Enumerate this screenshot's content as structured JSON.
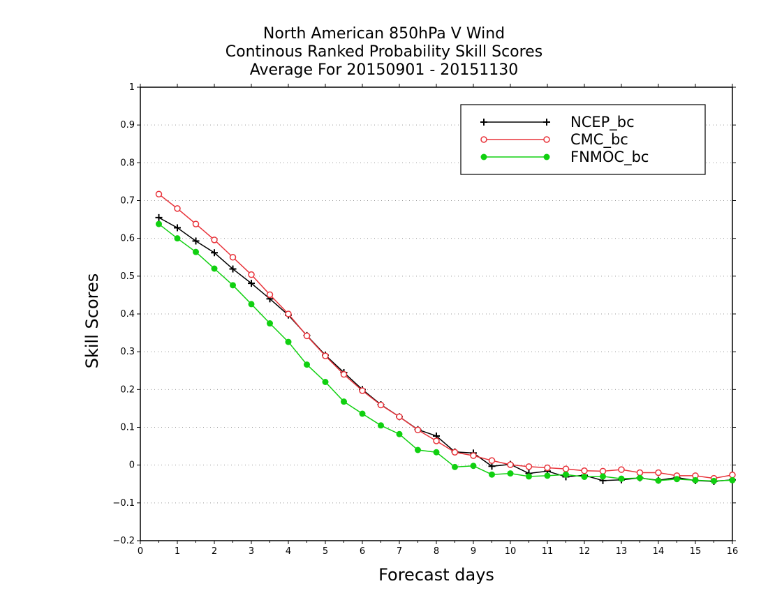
{
  "chart_data": {
    "type": "line",
    "title": [
      "North American 850hPa V Wind",
      "Continous Ranked Probability Skill Scores",
      "Average For 20150901 - 20151130"
    ],
    "xlabel": "Forecast days",
    "ylabel": "Skill Scores",
    "xlim": [
      0,
      16
    ],
    "ylim": [
      -0.2,
      1
    ],
    "x_ticks": [
      "0",
      "1",
      "2",
      "3",
      "4",
      "5",
      "6",
      "7",
      "8",
      "9",
      "10",
      "11",
      "12",
      "13",
      "14",
      "15",
      "16"
    ],
    "y_ticks": [
      "−0.2",
      "−0.1",
      "0",
      "0.1",
      "0.2",
      "0.3",
      "0.4",
      "0.5",
      "0.6",
      "0.7",
      "0.8",
      "0.9",
      "1"
    ],
    "y_tick_values": [
      -0.2,
      -0.1,
      0,
      0.1,
      0.2,
      0.3,
      0.4,
      0.5,
      0.6,
      0.7,
      0.8,
      0.9,
      1
    ],
    "grid": "horizontal dotted",
    "legend_position": "top-right",
    "x": [
      0.5,
      1,
      1.5,
      2,
      2.5,
      3,
      3.5,
      4,
      4.5,
      5,
      5.5,
      6,
      6.5,
      7,
      7.5,
      8,
      8.5,
      9,
      9.5,
      10,
      10.5,
      11,
      11.5,
      12,
      12.5,
      13,
      13.5,
      14,
      14.5,
      15,
      15.5,
      16
    ],
    "series": [
      {
        "name": "NCEP_bc",
        "color": "#000000",
        "marker": "plus",
        "values": [
          0.655,
          0.628,
          0.593,
          0.562,
          0.519,
          0.481,
          0.44,
          0.397,
          0.343,
          0.291,
          0.245,
          0.2,
          0.16,
          0.128,
          0.094,
          0.077,
          0.035,
          0.032,
          -0.003,
          0.002,
          -0.022,
          -0.016,
          -0.031,
          -0.027,
          -0.041,
          -0.039,
          -0.034,
          -0.04,
          -0.033,
          -0.041,
          -0.043,
          -0.039
        ]
      },
      {
        "name": "CMC_bc",
        "color": "#e8333a",
        "marker": "open-circle",
        "values": [
          0.717,
          0.679,
          0.638,
          0.596,
          0.55,
          0.504,
          0.451,
          0.4,
          0.342,
          0.289,
          0.24,
          0.197,
          0.159,
          0.128,
          0.093,
          0.064,
          0.034,
          0.025,
          0.012,
          0.001,
          -0.004,
          -0.007,
          -0.01,
          -0.015,
          -0.016,
          -0.012,
          -0.02,
          -0.02,
          -0.028,
          -0.028,
          -0.035,
          -0.026
        ]
      },
      {
        "name": "FNMOC_bc",
        "color": "#10d010",
        "marker": "filled-circle",
        "values": [
          0.638,
          0.6,
          0.564,
          0.52,
          0.476,
          0.426,
          0.375,
          0.326,
          0.266,
          0.22,
          0.168,
          0.136,
          0.105,
          0.082,
          0.04,
          0.034,
          -0.005,
          -0.002,
          -0.025,
          -0.022,
          -0.03,
          -0.028,
          -0.025,
          -0.031,
          -0.03,
          -0.036,
          -0.034,
          -0.041,
          -0.037,
          -0.04,
          -0.042,
          -0.04
        ]
      }
    ]
  }
}
